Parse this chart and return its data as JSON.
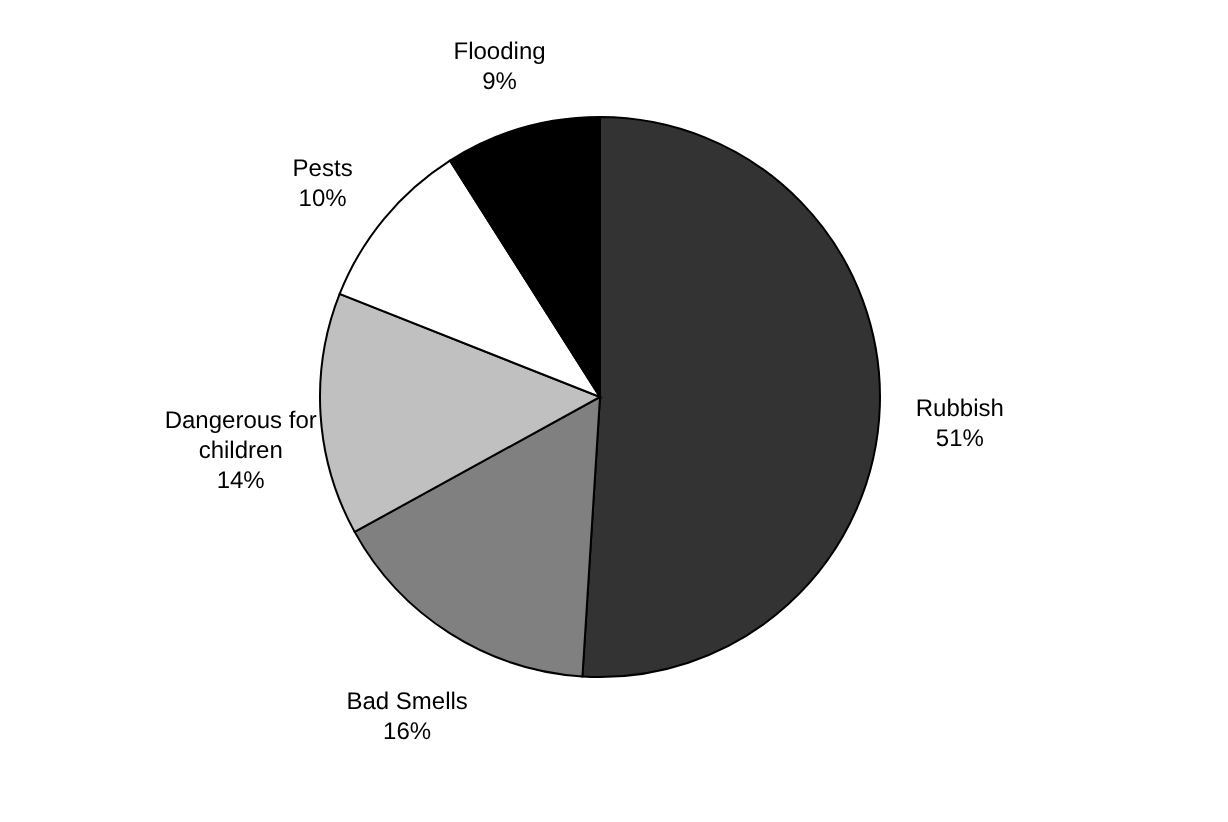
{
  "chart_data": {
    "type": "pie",
    "categories": [
      "Rubbish",
      "Bad Smells",
      "Dangerous for children",
      "Pests",
      "Flooding"
    ],
    "values": [
      51,
      16,
      14,
      10,
      9
    ],
    "colors": [
      "#333333",
      "#808080",
      "#c0c0c0",
      "#ffffff",
      "#000000"
    ],
    "value_labels": [
      "51%",
      "16%",
      "14%",
      "10%",
      "9%"
    ],
    "legend": false
  }
}
